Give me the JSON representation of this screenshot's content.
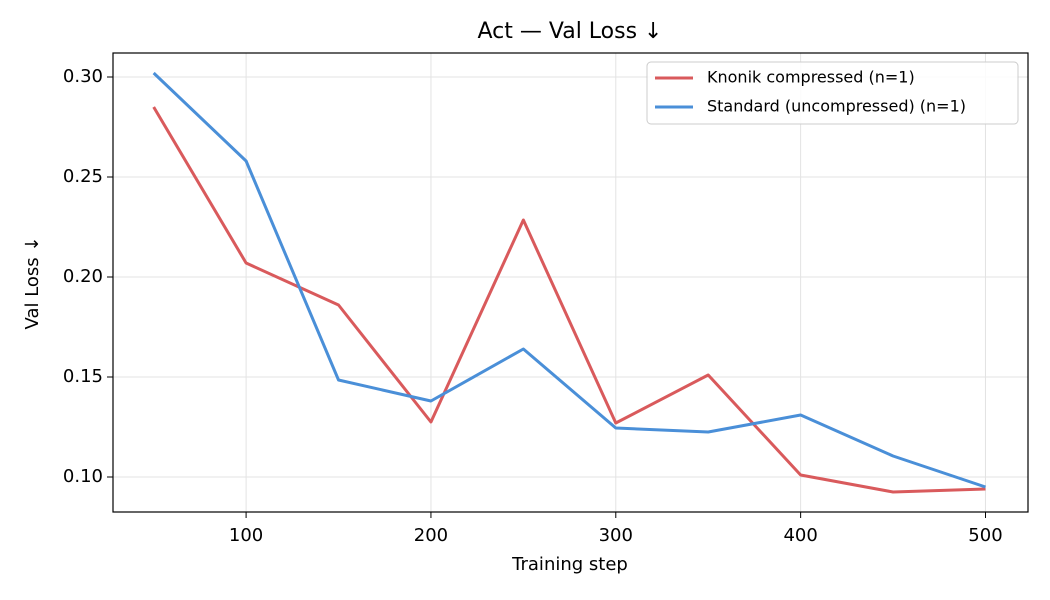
{
  "chart_data": {
    "type": "line",
    "title": "Act — Val Loss ↓",
    "x_label": "Training step",
    "y_label": "Val Loss ↓",
    "x": [
      50,
      100,
      150,
      200,
      250,
      300,
      350,
      400,
      450,
      500
    ],
    "series": [
      {
        "name": "Knonik compressed (n=1)",
        "color": "#d95a5c",
        "values": [
          0.285,
          0.207,
          0.186,
          0.1275,
          0.2285,
          0.127,
          0.151,
          0.101,
          0.0925,
          0.094
        ]
      },
      {
        "name": "Standard (uncompressed) (n=1)",
        "color": "#4a8fd8",
        "values": [
          0.302,
          0.258,
          0.1485,
          0.138,
          0.164,
          0.1245,
          0.1225,
          0.131,
          0.1105,
          0.095
        ]
      }
    ],
    "xlim": [
      28,
      523
    ],
    "ylim": [
      0.0825,
      0.312
    ],
    "xticks": [
      100,
      200,
      300,
      400,
      500
    ],
    "yticks": [
      {
        "value": 0.1,
        "label": "0.10"
      },
      {
        "value": 0.15,
        "label": "0.15"
      },
      {
        "value": 0.2,
        "label": "0.20"
      },
      {
        "value": 0.25,
        "label": "0.25"
      },
      {
        "value": 0.3,
        "label": "0.30"
      }
    ],
    "grid": true,
    "legend": "upper-right"
  }
}
